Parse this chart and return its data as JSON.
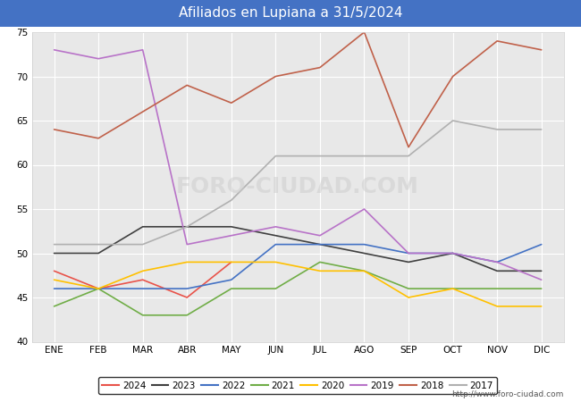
{
  "title": "Afiliados en Lupiana a 31/5/2024",
  "title_bg_color": "#4472c4",
  "title_text_color": "white",
  "xlabel": "",
  "ylabel": "",
  "ylim": [
    40,
    75
  ],
  "yticks": [
    40,
    45,
    50,
    55,
    60,
    65,
    70,
    75
  ],
  "months": [
    "ENE",
    "FEB",
    "MAR",
    "ABR",
    "MAY",
    "JUN",
    "JUL",
    "AGO",
    "SEP",
    "OCT",
    "NOV",
    "DIC"
  ],
  "watermark": "FORO-CIUDAD.COM",
  "url": "http://www.foro-ciudad.com",
  "series": {
    "2024": {
      "color": "#e8534a",
      "data": [
        48,
        46,
        47,
        45,
        49,
        null,
        null,
        null,
        null,
        null,
        null,
        null
      ]
    },
    "2023": {
      "color": "#404040",
      "data": [
        50,
        50,
        53,
        53,
        53,
        52,
        51,
        50,
        49,
        50,
        48,
        48
      ]
    },
    "2022": {
      "color": "#4472c4",
      "data": [
        46,
        46,
        46,
        46,
        47,
        51,
        51,
        51,
        50,
        50,
        49,
        51
      ]
    },
    "2021": {
      "color": "#70ad47",
      "data": [
        44,
        46,
        43,
        43,
        46,
        46,
        49,
        48,
        46,
        46,
        46,
        46
      ]
    },
    "2020": {
      "color": "#ffc000",
      "data": [
        47,
        46,
        48,
        49,
        49,
        49,
        48,
        48,
        45,
        46,
        44,
        44
      ]
    },
    "2019": {
      "color": "#b873c8",
      "data": [
        73,
        72,
        73,
        51,
        52,
        53,
        52,
        55,
        50,
        50,
        49,
        47
      ]
    },
    "2018": {
      "color": "#c0614a",
      "data": [
        64,
        63,
        66,
        69,
        67,
        70,
        71,
        75,
        62,
        70,
        74,
        73
      ]
    },
    "2017": {
      "color": "#b0b0b0",
      "data": [
        51,
        51,
        51,
        53,
        56,
        61,
        61,
        61,
        61,
        65,
        64,
        64
      ]
    }
  }
}
